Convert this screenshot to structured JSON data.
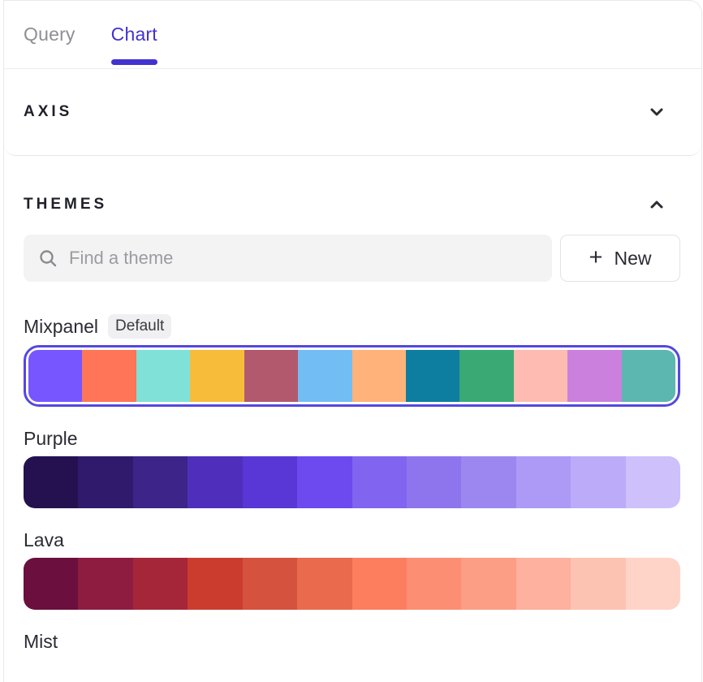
{
  "colors": {
    "accent": "#4232D0",
    "selection_ring": "#5348DF",
    "inactive_tab": "#8E8E95",
    "search_bg": "#F3F3F4",
    "badge_bg": "#F0F0F2"
  },
  "tabs": [
    {
      "label": "Query",
      "active": false
    },
    {
      "label": "Chart",
      "active": true
    }
  ],
  "axis_section": {
    "title": "AXIS",
    "chevron_icon": "chevron-down"
  },
  "themes_section": {
    "title": "THEMES",
    "chevron_icon": "chevron-up"
  },
  "search": {
    "placeholder": "Find a theme",
    "icon": "magnifier"
  },
  "new_button": {
    "label": "New",
    "plus_glyph": "+"
  },
  "themes": [
    {
      "name": "Mixpanel",
      "badge": "Default",
      "selected": true,
      "colors": [
        "#7856FF",
        "#FF7557",
        "#80E1D9",
        "#F8BC3B",
        "#B2596E",
        "#72BEF4",
        "#FFB27A",
        "#0D7EA0",
        "#3BA974",
        "#FEBBB2",
        "#CA80DC",
        "#5BB7AF"
      ],
      "dotted": [
        0
      ],
      "dot_style": "dark"
    },
    {
      "name": "Purple",
      "badge": null,
      "selected": false,
      "colors": [
        "#261150",
        "#301A6C",
        "#3C2489",
        "#4E2EBB",
        "#5936D6",
        "#6C4AEF",
        "#8164F0",
        "#8E75EE",
        "#9C87F0",
        "#AD9AF6",
        "#BCABF8",
        "#CEC0FB"
      ],
      "dotted": [
        6,
        7,
        8
      ],
      "dot_style": "light"
    },
    {
      "name": "Lava",
      "badge": null,
      "selected": false,
      "colors": [
        "#6A0F3E",
        "#8E1C40",
        "#A62639",
        "#CB3C2F",
        "#D5523F",
        "#E96A4C",
        "#FC7E5F",
        "#FC8F73",
        "#FC9E85",
        "#FDB19E",
        "#FDC3B2",
        "#FED4C8"
      ],
      "dotted": [
        4,
        5
      ],
      "dot_style": "light"
    },
    {
      "name": "Mist",
      "badge": null,
      "selected": false,
      "colors": [],
      "dotted": [],
      "dot_style": "light"
    }
  ]
}
